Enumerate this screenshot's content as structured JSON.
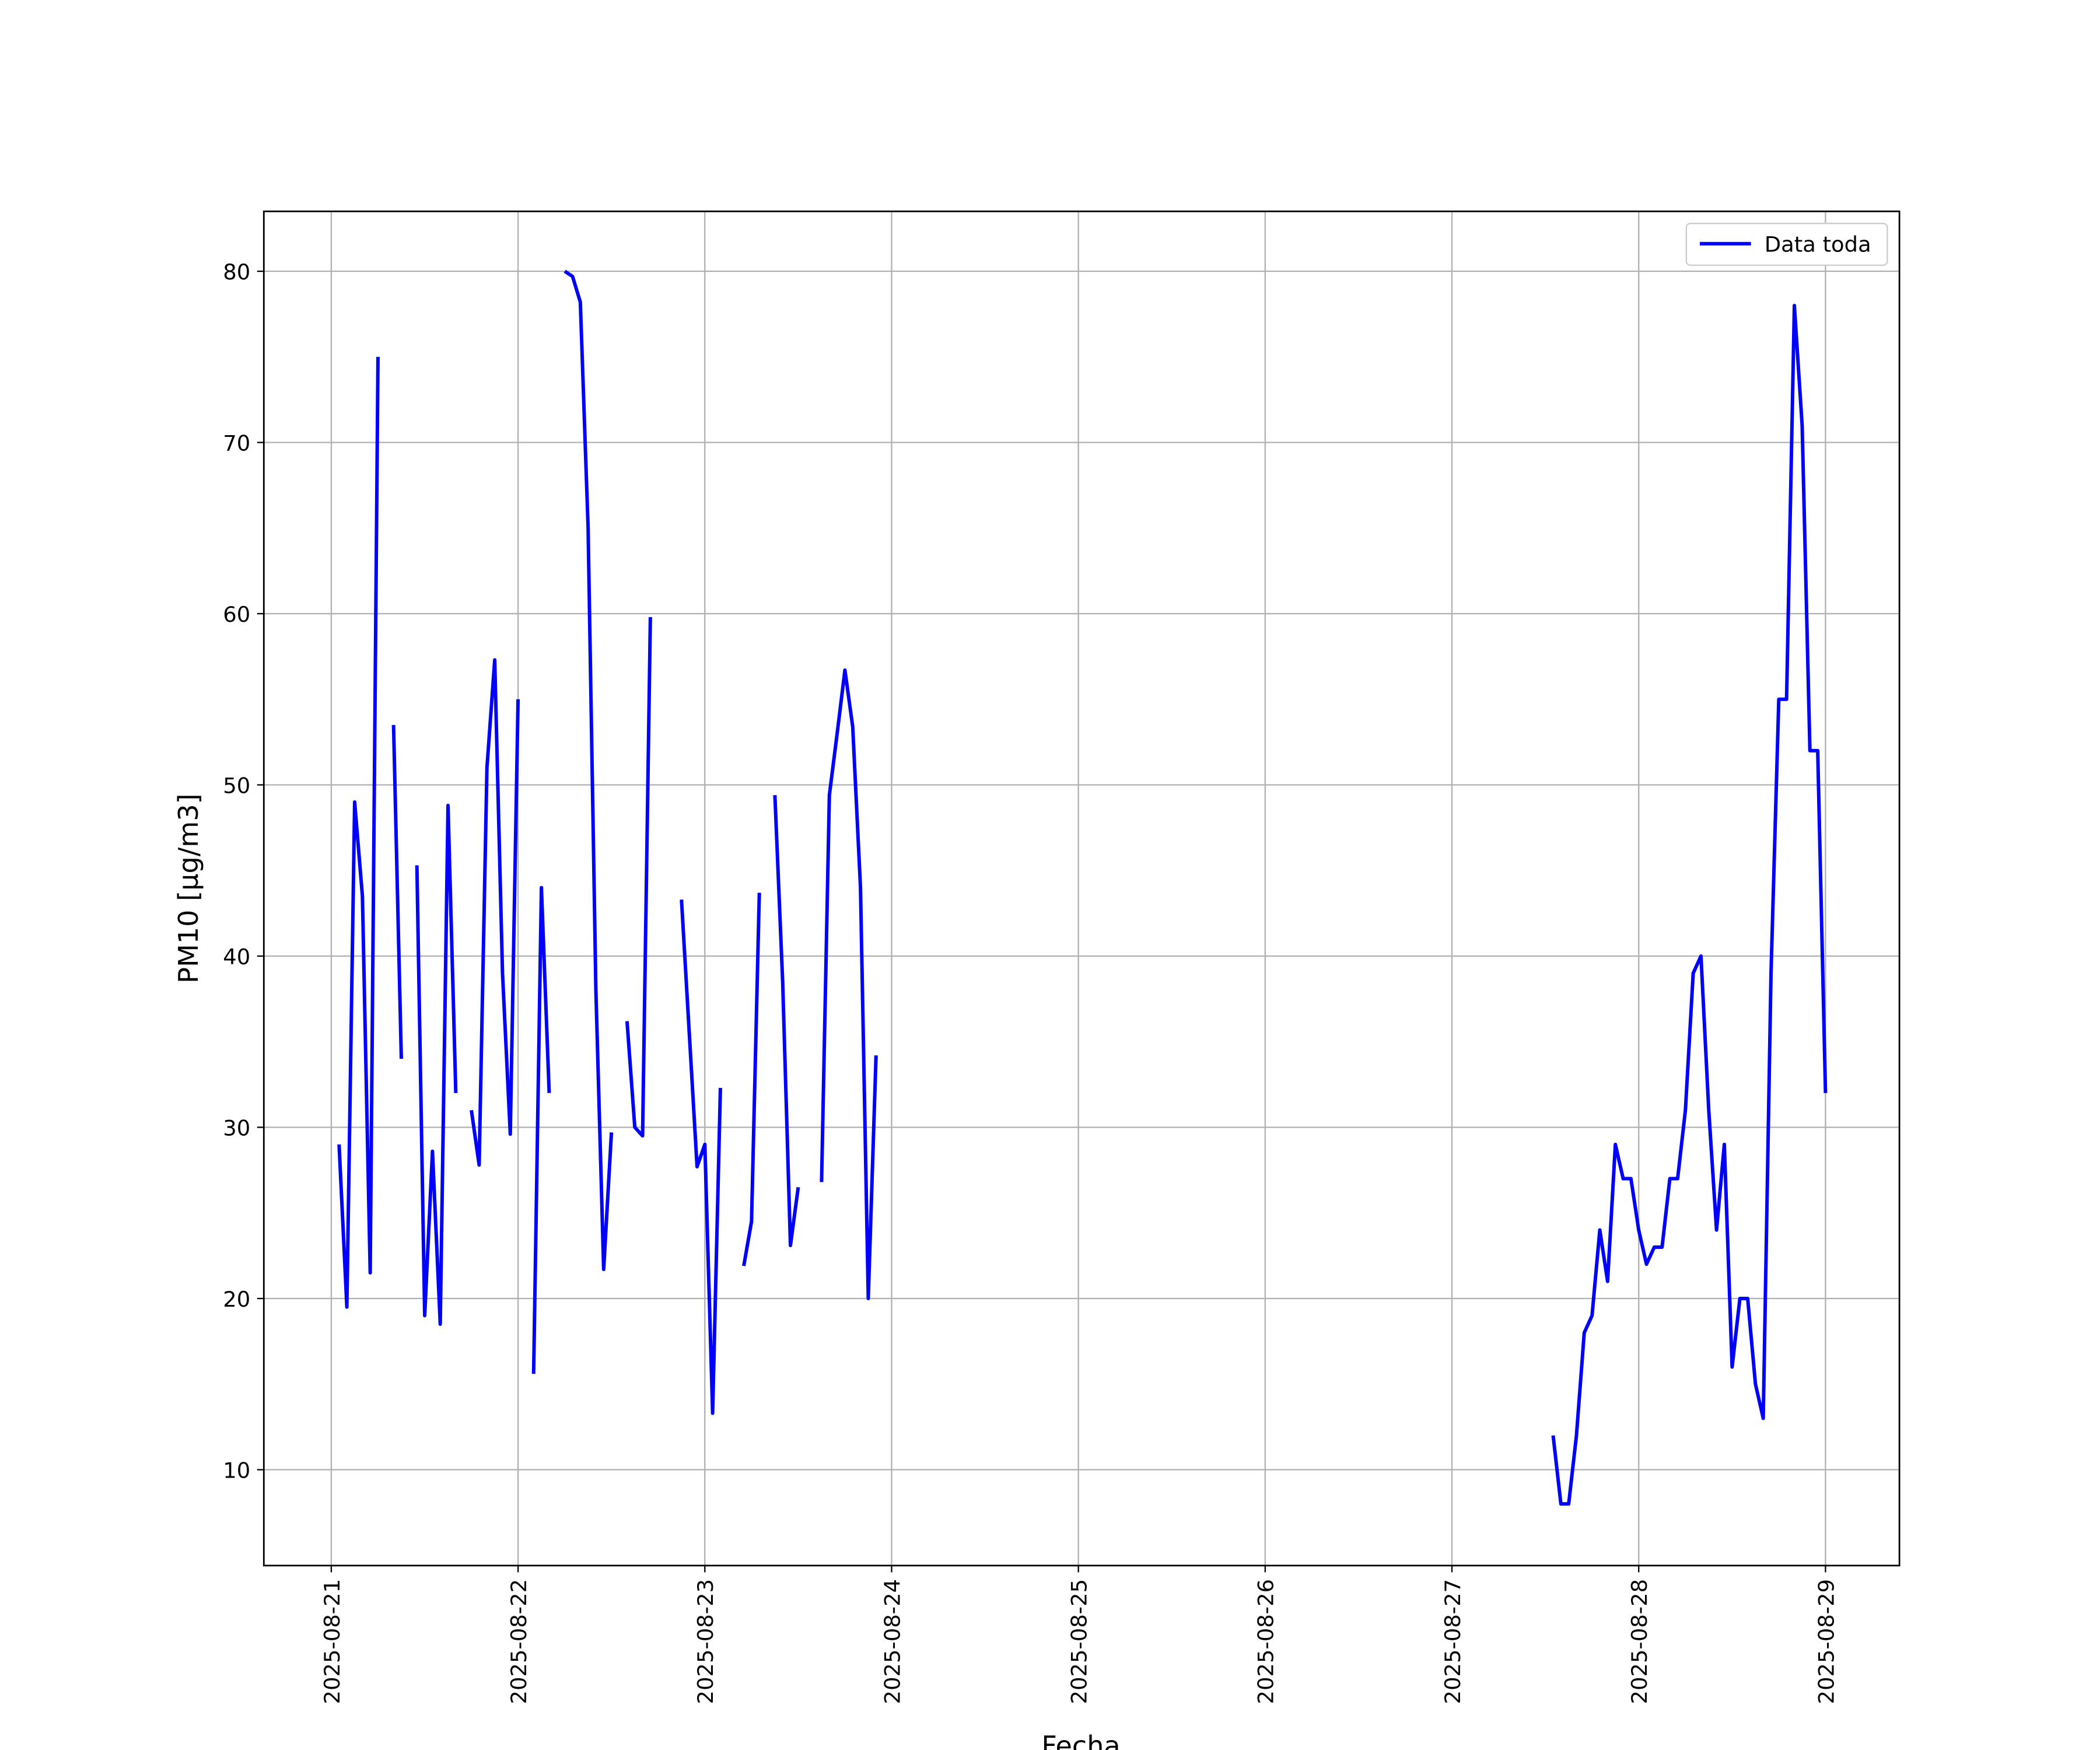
{
  "chart_data": {
    "type": "line",
    "xlabel": "Fecha",
    "ylabel": "PM10 [μg/m3]",
    "x": [
      "2025-08-21T01:00",
      "2025-08-21T02:00",
      "2025-08-21T03:00",
      "2025-08-21T04:00",
      "2025-08-21T05:00",
      "2025-08-21T06:00",
      "2025-08-21T07:00",
      "2025-08-21T08:00",
      "2025-08-21T09:00",
      "2025-08-21T10:00",
      "2025-08-21T11:00",
      "2025-08-21T12:00",
      "2025-08-21T13:00",
      "2025-08-21T14:00",
      "2025-08-21T15:00",
      "2025-08-21T16:00",
      "2025-08-21T17:00",
      "2025-08-21T18:00",
      "2025-08-21T19:00",
      "2025-08-21T20:00",
      "2025-08-21T21:00",
      "2025-08-21T22:00",
      "2025-08-21T23:00",
      "2025-08-22T00:00",
      "2025-08-22T01:00",
      "2025-08-22T02:00",
      "2025-08-22T03:00",
      "2025-08-22T04:00",
      "2025-08-22T05:00",
      "2025-08-22T06:00",
      "2025-08-22T07:00",
      "2025-08-22T08:00",
      "2025-08-22T09:00",
      "2025-08-22T10:00",
      "2025-08-22T11:00",
      "2025-08-22T12:00",
      "2025-08-22T13:00",
      "2025-08-22T14:00",
      "2025-08-22T15:00",
      "2025-08-22T16:00",
      "2025-08-22T17:00",
      "2025-08-22T18:00",
      "2025-08-22T21:00",
      "2025-08-22T22:00",
      "2025-08-22T23:00",
      "2025-08-23T00:00",
      "2025-08-23T01:00",
      "2025-08-23T02:00",
      "2025-08-23T03:00",
      "2025-08-23T05:00",
      "2025-08-23T06:00",
      "2025-08-23T07:00",
      "2025-08-23T08:00",
      "2025-08-23T09:00",
      "2025-08-23T10:00",
      "2025-08-23T11:00",
      "2025-08-23T12:00",
      "2025-08-23T13:00",
      "2025-08-23T15:00",
      "2025-08-23T16:00",
      "2025-08-23T17:00",
      "2025-08-23T18:00",
      "2025-08-23T19:00",
      "2025-08-23T20:00",
      "2025-08-23T21:00",
      "2025-08-23T22:00",
      "2025-08-23T23:00",
      "2025-08-27T13:00",
      "2025-08-27T14:00",
      "2025-08-27T15:00",
      "2025-08-27T16:00",
      "2025-08-27T17:00",
      "2025-08-27T18:00",
      "2025-08-27T19:00",
      "2025-08-27T20:00",
      "2025-08-27T21:00",
      "2025-08-27T22:00",
      "2025-08-27T23:00",
      "2025-08-28T00:00",
      "2025-08-28T01:00",
      "2025-08-28T02:00",
      "2025-08-28T03:00",
      "2025-08-28T04:00",
      "2025-08-28T05:00",
      "2025-08-28T06:00",
      "2025-08-28T07:00",
      "2025-08-28T08:00",
      "2025-08-28T09:00",
      "2025-08-28T10:00",
      "2025-08-28T11:00",
      "2025-08-28T12:00",
      "2025-08-28T13:00",
      "2025-08-28T14:00",
      "2025-08-28T15:00",
      "2025-08-28T16:00",
      "2025-08-28T17:00",
      "2025-08-28T18:00",
      "2025-08-28T19:00",
      "2025-08-28T20:00",
      "2025-08-28T21:00",
      "2025-08-28T22:00",
      "2025-08-28T23:00",
      "2025-08-29T00:00"
    ],
    "series": [
      {
        "name": "Data toda",
        "color": "#0000ff",
        "values": [
          29,
          19.5,
          49,
          43.5,
          21.5,
          75,
          null,
          53.5,
          34,
          null,
          45.3,
          19,
          28.6,
          18.5,
          48.8,
          32,
          null,
          31,
          27.8,
          51,
          57.3,
          39,
          29.6,
          55,
          null,
          15.6,
          44,
          32,
          null,
          80,
          79.7,
          78.2,
          65,
          38,
          21.7,
          29.7,
          null,
          36.2,
          30,
          29.5,
          59.8,
          null,
          43.3,
          35.5,
          27.7,
          29,
          13.3,
          32.3,
          null,
          21.9,
          24.5,
          43.7,
          null,
          49.4,
          38.5,
          23.1,
          26.5,
          null,
          26.8,
          49.4,
          53,
          56.7,
          53.4,
          44,
          20,
          34.2,
          null,
          12,
          8,
          8,
          12,
          18,
          19,
          24,
          21,
          29,
          27,
          27,
          24,
          22,
          23,
          23,
          27,
          27,
          31,
          39,
          40,
          31,
          24,
          29,
          16,
          20,
          20,
          15,
          13,
          39,
          55,
          55,
          78,
          71,
          52,
          52,
          32
        ]
      }
    ],
    "xlim": [
      "2025-08-20T15:20",
      "2025-08-29T09:30"
    ],
    "xticks": [
      "2025-08-21",
      "2025-08-22",
      "2025-08-23",
      "2025-08-24",
      "2025-08-25",
      "2025-08-26",
      "2025-08-27",
      "2025-08-28",
      "2025-08-29"
    ],
    "ylim": [
      4.4,
      83.5
    ],
    "yticks": [
      10,
      20,
      30,
      40,
      50,
      60,
      70,
      80
    ],
    "grid": true,
    "legend": "upper right"
  }
}
